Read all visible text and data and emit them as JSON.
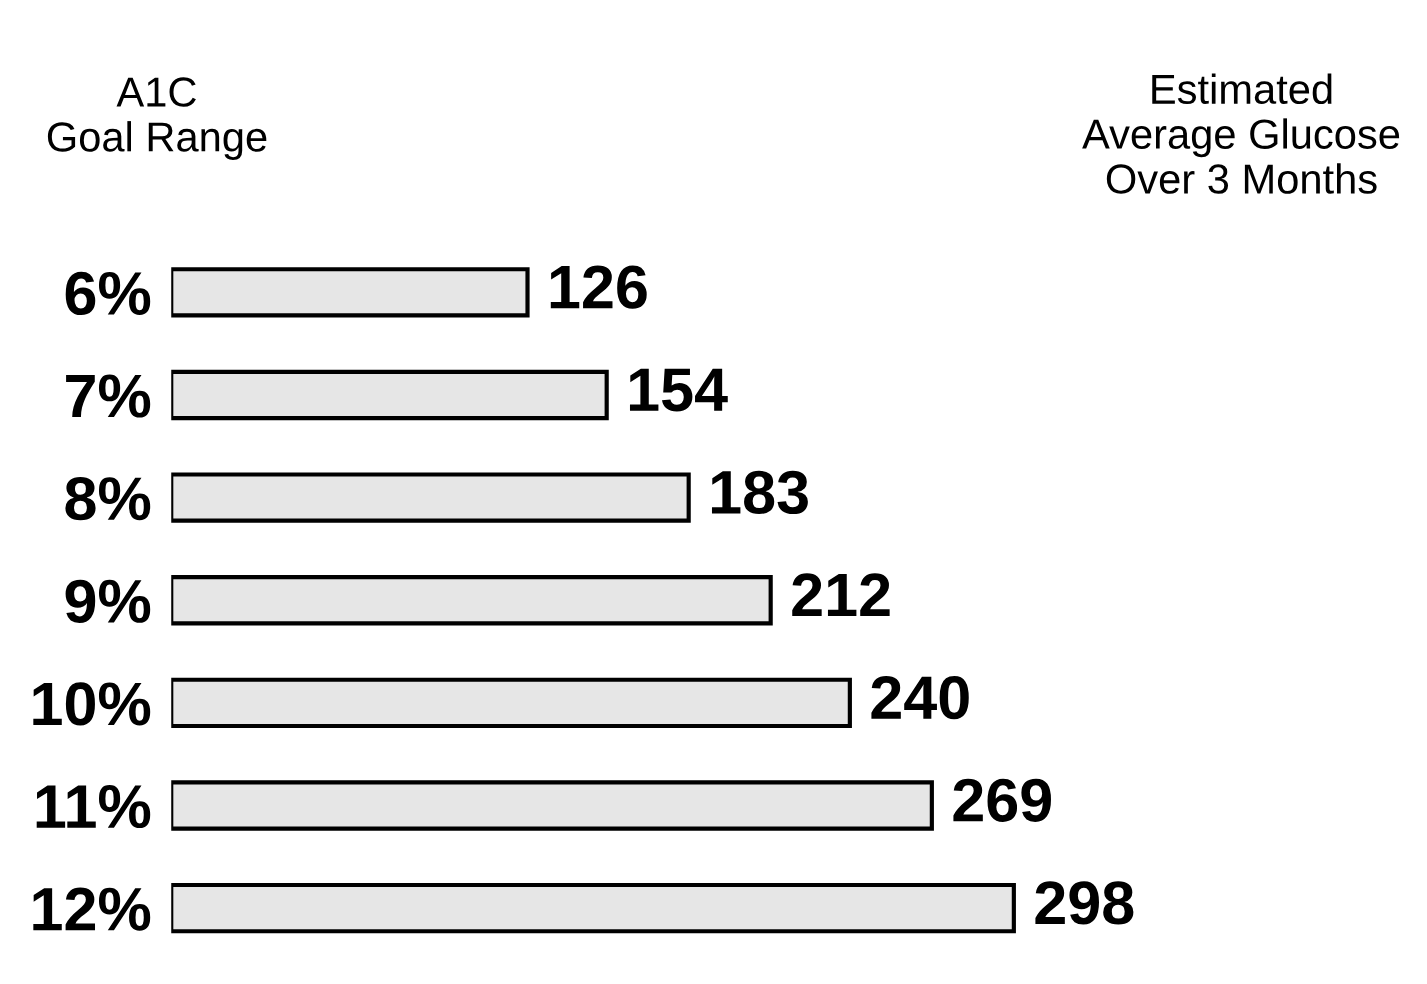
{
  "chart_data": {
    "type": "bar",
    "orientation": "horizontal",
    "categories": [
      "6%",
      "7%",
      "8%",
      "9%",
      "10%",
      "11%",
      "12%"
    ],
    "values": [
      126,
      154,
      183,
      212,
      240,
      269,
      298
    ],
    "color": "#e6e6e6",
    "data_labels": true,
    "grid": false,
    "legend": false,
    "annotations": [
      "A1C\nGoal Range",
      "Estimated\nAverage Glucose\nOver 3 Months"
    ]
  }
}
